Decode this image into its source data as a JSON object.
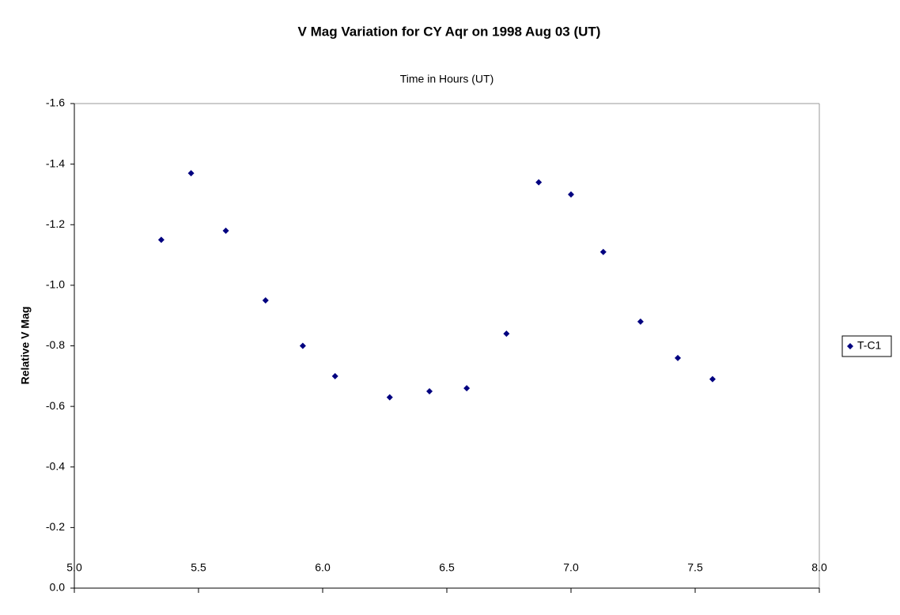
{
  "chart_data": {
    "type": "scatter",
    "title": "V Mag Variation for CY Aqr on 1998 Aug 03 (UT)",
    "x_label": "Time in Hours (UT)",
    "y_label": "Relative V Mag",
    "series": [
      {
        "name": "T-C1",
        "color": "#000080",
        "marker": "diamond",
        "x": [
          5.35,
          5.47,
          5.61,
          5.77,
          5.92,
          6.05,
          6.27,
          6.43,
          6.58,
          6.74,
          6.87,
          7.0,
          7.13,
          7.28,
          7.43,
          7.57
        ],
        "values": [
          -1.15,
          -1.37,
          -1.18,
          -0.95,
          -0.8,
          -0.7,
          -0.63,
          -0.65,
          -0.66,
          -0.84,
          -1.34,
          -1.3,
          -1.11,
          -0.88,
          -0.76,
          -0.69
        ]
      }
    ],
    "xlim": [
      5.0,
      8.0
    ],
    "xticks": [
      {
        "value": 5.0,
        "label": "5.0"
      },
      5.5,
      {
        "value": 6.0,
        "label": "6.0"
      },
      6.5,
      {
        "value": 7.0,
        "label": "7.0"
      },
      7.5,
      {
        "value": 8.0,
        "label": "8.0"
      }
    ],
    "ylim": [
      -1.6,
      0.0
    ],
    "y_inverted": true,
    "yticks": [
      -1.6,
      -1.4,
      -1.2,
      {
        "value": -1.0,
        "label": "-1.0"
      },
      -0.8,
      -0.6,
      -0.4,
      -0.2,
      {
        "value": 0.0,
        "label": "0.0"
      }
    ],
    "grid": false,
    "legend": "right"
  }
}
